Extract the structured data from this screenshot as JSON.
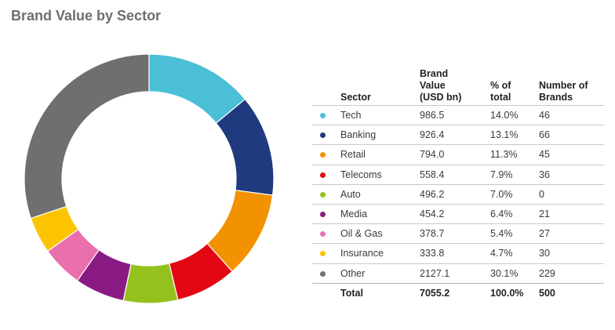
{
  "title": "Brand Value by Sector",
  "table": {
    "headers": {
      "sector": "Sector",
      "value": [
        "Brand",
        "Value",
        "(USD bn)"
      ],
      "pct": [
        "% of",
        "total"
      ],
      "count": [
        "Number of",
        "Brands"
      ]
    },
    "rows": [
      {
        "sector": "Tech",
        "value": "986.5",
        "pct": "14.0%",
        "count": "46",
        "color": "#4bbfd6"
      },
      {
        "sector": "Banking",
        "value": "926.4",
        "pct": "13.1%",
        "count": "66",
        "color": "#1f3a7f"
      },
      {
        "sector": "Retail",
        "value": "794.0",
        "pct": "11.3%",
        "count": "45",
        "color": "#f39200"
      },
      {
        "sector": "Telecoms",
        "value": "558.4",
        "pct": "7.9%",
        "count": "36",
        "color": "#e30613"
      },
      {
        "sector": "Auto",
        "value": "496.2",
        "pct": "7.0%",
        "count": "0",
        "color": "#95c11f"
      },
      {
        "sector": "Media",
        "value": "454.2",
        "pct": "6.4%",
        "count": "21",
        "color": "#8a1a83"
      },
      {
        "sector": "Oil & Gas",
        "value": "378.7",
        "pct": "5.4%",
        "count": "27",
        "color": "#ea70ad"
      },
      {
        "sector": "Insurance",
        "value": "333.8",
        "pct": "4.7%",
        "count": "30",
        "color": "#fcc400"
      },
      {
        "sector": "Other",
        "value": "2127.1",
        "pct": "30.1%",
        "count": "229",
        "color": "#6f6f6e"
      }
    ],
    "total": {
      "label": "Total",
      "value": "7055.2",
      "pct": "100.0%",
      "count": "500"
    }
  },
  "chart_data": {
    "type": "pie",
    "donut": true,
    "title": "Brand Value by Sector",
    "categories": [
      "Tech",
      "Banking",
      "Retail",
      "Telecoms",
      "Auto",
      "Media",
      "Oil & Gas",
      "Insurance",
      "Other"
    ],
    "values": [
      986.5,
      926.4,
      794.0,
      558.4,
      496.2,
      454.2,
      378.7,
      333.8,
      2127.1
    ],
    "colors": [
      "#4bbfd6",
      "#1f3a7f",
      "#f39200",
      "#e30613",
      "#95c11f",
      "#8a1a83",
      "#ea70ad",
      "#fcc400",
      "#6f6f6e"
    ]
  }
}
